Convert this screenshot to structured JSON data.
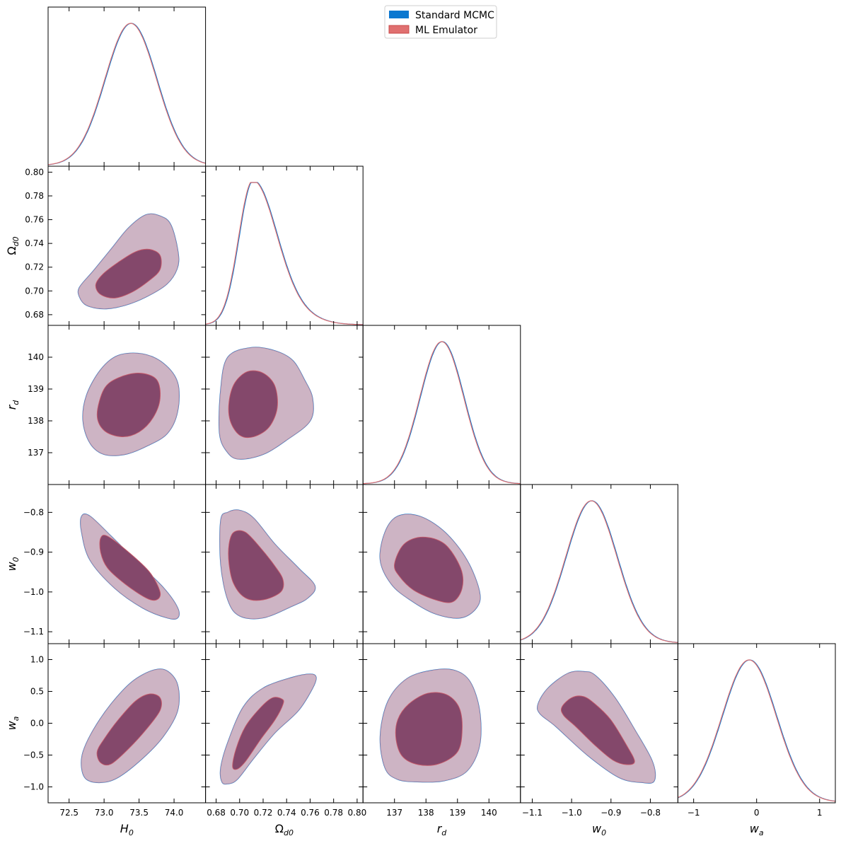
{
  "chart_data": {
    "type": "corner",
    "legend": {
      "location": "top-center",
      "entries": [
        {
          "name": "Standard MCMC",
          "color": "#0b78d0"
        },
        {
          "name": "ML Emulator",
          "color": "#e07070"
        }
      ]
    },
    "contour_fill": {
      "outer": "#cdb4c4",
      "inner": "#84486b"
    },
    "parameters": [
      {
        "key": "H0",
        "label": "H",
        "sub": "0",
        "range": [
          72.2,
          74.45
        ],
        "ticks": [
          72.5,
          73.0,
          73.5,
          74.0
        ],
        "tick_labels": [
          "72.5",
          "73.0",
          "73.5",
          "74.0"
        ],
        "mean": 73.38,
        "sigma": 0.37
      },
      {
        "key": "Omega_d0",
        "label": "Ω",
        "sub": "d0",
        "range": [
          0.671,
          0.805
        ],
        "ticks": [
          0.68,
          0.7,
          0.72,
          0.74,
          0.76,
          0.78,
          0.8
        ],
        "tick_labels": [
          "0.68",
          "0.70",
          "0.72",
          "0.74",
          "0.76",
          "0.78",
          "0.80"
        ],
        "mean": 0.711,
        "sigma": 0.016
      },
      {
        "key": "r_d",
        "label": "r",
        "sub": "d",
        "range": [
          136.0,
          141.0
        ],
        "ticks": [
          137,
          138,
          139,
          140
        ],
        "tick_labels": [
          "137",
          "138",
          "139",
          "140"
        ],
        "mean": 138.5,
        "sigma": 0.7
      },
      {
        "key": "w0",
        "label": "w",
        "sub": "0",
        "range": [
          -1.13,
          -0.73
        ],
        "ticks": [
          -1.1,
          -1.0,
          -0.9,
          -0.8
        ],
        "tick_labels": [
          "−1.1",
          "−1.0",
          "−0.9",
          "−0.8"
        ],
        "mean": -0.95,
        "sigma": 0.065
      },
      {
        "key": "wa",
        "label": "w",
        "sub": "a",
        "range": [
          -1.25,
          1.25
        ],
        "ticks": [
          -1.0,
          -0.5,
          0.0,
          0.5,
          1.0
        ],
        "tick_labels": [
          "−1.0",
          "−0.5",
          "0.0",
          "0.5",
          "1.0"
        ],
        "bottom_ticks": [
          -1,
          0,
          1
        ],
        "bottom_tick_labels": [
          "−1",
          "0",
          "1"
        ],
        "mean": -0.12,
        "sigma": 0.43
      }
    ],
    "marginals_1d": [
      {
        "param": "H0",
        "peak_x": 73.38,
        "type": "gaussian"
      },
      {
        "param": "Omega_d0",
        "peak_x": 0.711,
        "type": "skewed-right"
      },
      {
        "param": "r_d",
        "peak_x": 138.5,
        "type": "gaussian"
      },
      {
        "param": "w0",
        "peak_x": -0.95,
        "type": "gaussian"
      },
      {
        "param": "wa",
        "peak_x": -0.12,
        "type": "gaussian"
      }
    ],
    "contours_2d": [
      {
        "x": "H0",
        "y": "Omega_d0",
        "outer": [
          [
            72.65,
            0.695
          ],
          [
            72.75,
            0.688
          ],
          [
            73.0,
            0.685
          ],
          [
            73.3,
            0.688
          ],
          [
            73.6,
            0.695
          ],
          [
            73.9,
            0.706
          ],
          [
            74.05,
            0.72
          ],
          [
            74.05,
            0.735
          ],
          [
            73.95,
            0.756
          ],
          [
            73.8,
            0.763
          ],
          [
            73.6,
            0.764
          ],
          [
            73.35,
            0.753
          ],
          [
            73.1,
            0.735
          ],
          [
            72.85,
            0.717
          ],
          [
            72.65,
            0.703
          ]
        ],
        "inner": [
          [
            72.88,
            0.705
          ],
          [
            72.95,
            0.697
          ],
          [
            73.15,
            0.694
          ],
          [
            73.4,
            0.699
          ],
          [
            73.65,
            0.709
          ],
          [
            73.8,
            0.718
          ],
          [
            73.8,
            0.73
          ],
          [
            73.65,
            0.735
          ],
          [
            73.45,
            0.733
          ],
          [
            73.2,
            0.724
          ],
          [
            72.98,
            0.714
          ]
        ]
      },
      {
        "x": "H0",
        "y": "r_d",
        "outer": [
          [
            72.7,
            138.0
          ],
          [
            72.8,
            137.3
          ],
          [
            73.0,
            136.95
          ],
          [
            73.3,
            136.95
          ],
          [
            73.6,
            137.2
          ],
          [
            73.9,
            137.6
          ],
          [
            74.05,
            138.3
          ],
          [
            74.05,
            139.2
          ],
          [
            73.85,
            139.8
          ],
          [
            73.55,
            140.1
          ],
          [
            73.2,
            140.05
          ],
          [
            72.95,
            139.6
          ],
          [
            72.75,
            138.8
          ]
        ],
        "inner": [
          [
            72.9,
            138.2
          ],
          [
            73.0,
            137.7
          ],
          [
            73.25,
            137.5
          ],
          [
            73.5,
            137.65
          ],
          [
            73.7,
            138.1
          ],
          [
            73.8,
            138.7
          ],
          [
            73.75,
            139.3
          ],
          [
            73.5,
            139.5
          ],
          [
            73.2,
            139.35
          ],
          [
            73.0,
            139.0
          ]
        ]
      },
      {
        "x": "H0",
        "y": "w0",
        "outer": [
          [
            72.68,
            -0.81
          ],
          [
            72.8,
            -0.81
          ],
          [
            73.1,
            -0.86
          ],
          [
            73.5,
            -0.93
          ],
          [
            73.85,
            -0.99
          ],
          [
            74.05,
            -1.04
          ],
          [
            74.05,
            -1.065
          ],
          [
            73.9,
            -1.065
          ],
          [
            73.55,
            -1.04
          ],
          [
            73.15,
            -0.99
          ],
          [
            72.8,
            -0.92
          ],
          [
            72.68,
            -0.85
          ]
        ],
        "inner": [
          [
            72.95,
            -0.865
          ],
          [
            73.05,
            -0.86
          ],
          [
            73.35,
            -0.9
          ],
          [
            73.65,
            -0.95
          ],
          [
            73.8,
            -1.0
          ],
          [
            73.75,
            -1.02
          ],
          [
            73.6,
            -1.015
          ],
          [
            73.3,
            -0.98
          ],
          [
            73.05,
            -0.94
          ],
          [
            72.95,
            -0.9
          ]
        ]
      },
      {
        "x": "H0",
        "y": "wa",
        "outer": [
          [
            72.68,
            -0.7
          ],
          [
            72.75,
            -0.88
          ],
          [
            72.95,
            -0.93
          ],
          [
            73.2,
            -0.85
          ],
          [
            73.55,
            -0.55
          ],
          [
            73.85,
            -0.2
          ],
          [
            74.05,
            0.2
          ],
          [
            74.05,
            0.6
          ],
          [
            73.9,
            0.82
          ],
          [
            73.7,
            0.83
          ],
          [
            73.4,
            0.65
          ],
          [
            73.1,
            0.3
          ],
          [
            72.85,
            -0.1
          ],
          [
            72.7,
            -0.45
          ]
        ],
        "inner": [
          [
            72.9,
            -0.45
          ],
          [
            72.95,
            -0.62
          ],
          [
            73.1,
            -0.64
          ],
          [
            73.35,
            -0.4
          ],
          [
            73.6,
            -0.1
          ],
          [
            73.8,
            0.2
          ],
          [
            73.8,
            0.4
          ],
          [
            73.65,
            0.46
          ],
          [
            73.45,
            0.35
          ],
          [
            73.2,
            0.05
          ],
          [
            73.0,
            -0.25
          ]
        ]
      },
      {
        "x": "Omega_d0",
        "y": "r_d",
        "outer": [
          [
            0.683,
            137.6
          ],
          [
            0.69,
            137.0
          ],
          [
            0.7,
            136.8
          ],
          [
            0.72,
            136.95
          ],
          [
            0.74,
            137.4
          ],
          [
            0.76,
            138.0
          ],
          [
            0.762,
            138.7
          ],
          [
            0.755,
            139.3
          ],
          [
            0.745,
            139.9
          ],
          [
            0.73,
            140.2
          ],
          [
            0.71,
            140.3
          ],
          [
            0.69,
            140.0
          ],
          [
            0.684,
            139.0
          ]
        ],
        "inner": [
          [
            0.692,
            138.0
          ],
          [
            0.7,
            137.55
          ],
          [
            0.712,
            137.5
          ],
          [
            0.725,
            137.8
          ],
          [
            0.732,
            138.4
          ],
          [
            0.73,
            139.1
          ],
          [
            0.72,
            139.5
          ],
          [
            0.707,
            139.55
          ],
          [
            0.696,
            139.2
          ],
          [
            0.691,
            138.6
          ]
        ]
      },
      {
        "x": "Omega_d0",
        "y": "w0",
        "outer": [
          [
            0.684,
            -0.82
          ],
          [
            0.69,
            -0.8
          ],
          [
            0.7,
            -0.795
          ],
          [
            0.712,
            -0.815
          ],
          [
            0.73,
            -0.88
          ],
          [
            0.75,
            -0.94
          ],
          [
            0.764,
            -0.985
          ],
          [
            0.758,
            -1.015
          ],
          [
            0.745,
            -1.035
          ],
          [
            0.72,
            -1.065
          ],
          [
            0.7,
            -1.06
          ],
          [
            0.69,
            -1.02
          ],
          [
            0.684,
            -0.93
          ]
        ],
        "inner": [
          [
            0.691,
            -0.88
          ],
          [
            0.695,
            -0.85
          ],
          [
            0.705,
            -0.85
          ],
          [
            0.718,
            -0.89
          ],
          [
            0.73,
            -0.935
          ],
          [
            0.737,
            -0.97
          ],
          [
            0.735,
            -1.0
          ],
          [
            0.72,
            -1.02
          ],
          [
            0.705,
            -1.015
          ],
          [
            0.695,
            -0.98
          ],
          [
            0.691,
            -0.93
          ]
        ]
      },
      {
        "x": "Omega_d0",
        "y": "wa",
        "outer": [
          [
            0.685,
            -0.92
          ],
          [
            0.69,
            -0.95
          ],
          [
            0.698,
            -0.88
          ],
          [
            0.712,
            -0.55
          ],
          [
            0.73,
            -0.15
          ],
          [
            0.75,
            0.2
          ],
          [
            0.762,
            0.55
          ],
          [
            0.765,
            0.72
          ],
          [
            0.76,
            0.77
          ],
          [
            0.745,
            0.72
          ],
          [
            0.72,
            0.55
          ],
          [
            0.703,
            0.25
          ],
          [
            0.69,
            -0.3
          ],
          [
            0.684,
            -0.7
          ]
        ],
        "inner": [
          [
            0.694,
            -0.68
          ],
          [
            0.698,
            -0.72
          ],
          [
            0.705,
            -0.6
          ],
          [
            0.718,
            -0.25
          ],
          [
            0.73,
            0.05
          ],
          [
            0.737,
            0.3
          ],
          [
            0.736,
            0.38
          ],
          [
            0.728,
            0.4
          ],
          [
            0.718,
            0.25
          ],
          [
            0.705,
            -0.05
          ],
          [
            0.697,
            -0.4
          ]
        ]
      },
      {
        "x": "r_d",
        "y": "w0",
        "outer": [
          [
            136.55,
            -0.92
          ],
          [
            136.7,
            -0.85
          ],
          [
            137.1,
            -0.81
          ],
          [
            137.8,
            -0.81
          ],
          [
            138.6,
            -0.85
          ],
          [
            139.3,
            -0.92
          ],
          [
            139.7,
            -1.0
          ],
          [
            139.6,
            -1.04
          ],
          [
            139.1,
            -1.065
          ],
          [
            138.3,
            -1.055
          ],
          [
            137.5,
            -1.02
          ],
          [
            136.9,
            -0.98
          ]
        ],
        "inner": [
          [
            137.0,
            -0.93
          ],
          [
            137.3,
            -0.88
          ],
          [
            137.9,
            -0.862
          ],
          [
            138.6,
            -0.88
          ],
          [
            139.1,
            -0.94
          ],
          [
            139.15,
            -0.99
          ],
          [
            138.85,
            -1.025
          ],
          [
            138.3,
            -1.02
          ],
          [
            137.6,
            -0.995
          ],
          [
            137.15,
            -0.96
          ]
        ]
      },
      {
        "x": "r_d",
        "y": "wa",
        "outer": [
          [
            136.55,
            -0.2
          ],
          [
            136.7,
            -0.7
          ],
          [
            137.1,
            -0.88
          ],
          [
            137.8,
            -0.92
          ],
          [
            138.6,
            -0.9
          ],
          [
            139.3,
            -0.75
          ],
          [
            139.7,
            -0.35
          ],
          [
            139.7,
            0.2
          ],
          [
            139.4,
            0.65
          ],
          [
            138.9,
            0.83
          ],
          [
            138.2,
            0.83
          ],
          [
            137.4,
            0.7
          ],
          [
            136.8,
            0.35
          ]
        ],
        "inner": [
          [
            137.05,
            -0.25
          ],
          [
            137.25,
            -0.52
          ],
          [
            137.75,
            -0.65
          ],
          [
            138.4,
            -0.64
          ],
          [
            139.0,
            -0.45
          ],
          [
            139.15,
            -0.1
          ],
          [
            139.05,
            0.25
          ],
          [
            138.65,
            0.45
          ],
          [
            138.05,
            0.47
          ],
          [
            137.45,
            0.3
          ],
          [
            137.1,
            0.05
          ]
        ]
      },
      {
        "x": "w0",
        "y": "wa",
        "outer": [
          [
            -1.085,
            0.3
          ],
          [
            -1.06,
            0.55
          ],
          [
            -1.01,
            0.78
          ],
          [
            -0.97,
            0.81
          ],
          [
            -0.94,
            0.75
          ],
          [
            -0.89,
            0.4
          ],
          [
            -0.84,
            -0.1
          ],
          [
            -0.795,
            -0.6
          ],
          [
            -0.79,
            -0.9
          ],
          [
            -0.82,
            -0.93
          ],
          [
            -0.88,
            -0.85
          ],
          [
            -0.96,
            -0.5
          ],
          [
            -1.04,
            -0.05
          ],
          [
            -1.08,
            0.15
          ]
        ],
        "inner": [
          [
            -1.025,
            0.25
          ],
          [
            -1.0,
            0.4
          ],
          [
            -0.97,
            0.42
          ],
          [
            -0.94,
            0.3
          ],
          [
            -0.9,
            0.05
          ],
          [
            -0.86,
            -0.35
          ],
          [
            -0.84,
            -0.6
          ],
          [
            -0.86,
            -0.65
          ],
          [
            -0.895,
            -0.58
          ],
          [
            -0.94,
            -0.35
          ],
          [
            -0.99,
            -0.05
          ],
          [
            -1.02,
            0.12
          ]
        ]
      }
    ]
  }
}
